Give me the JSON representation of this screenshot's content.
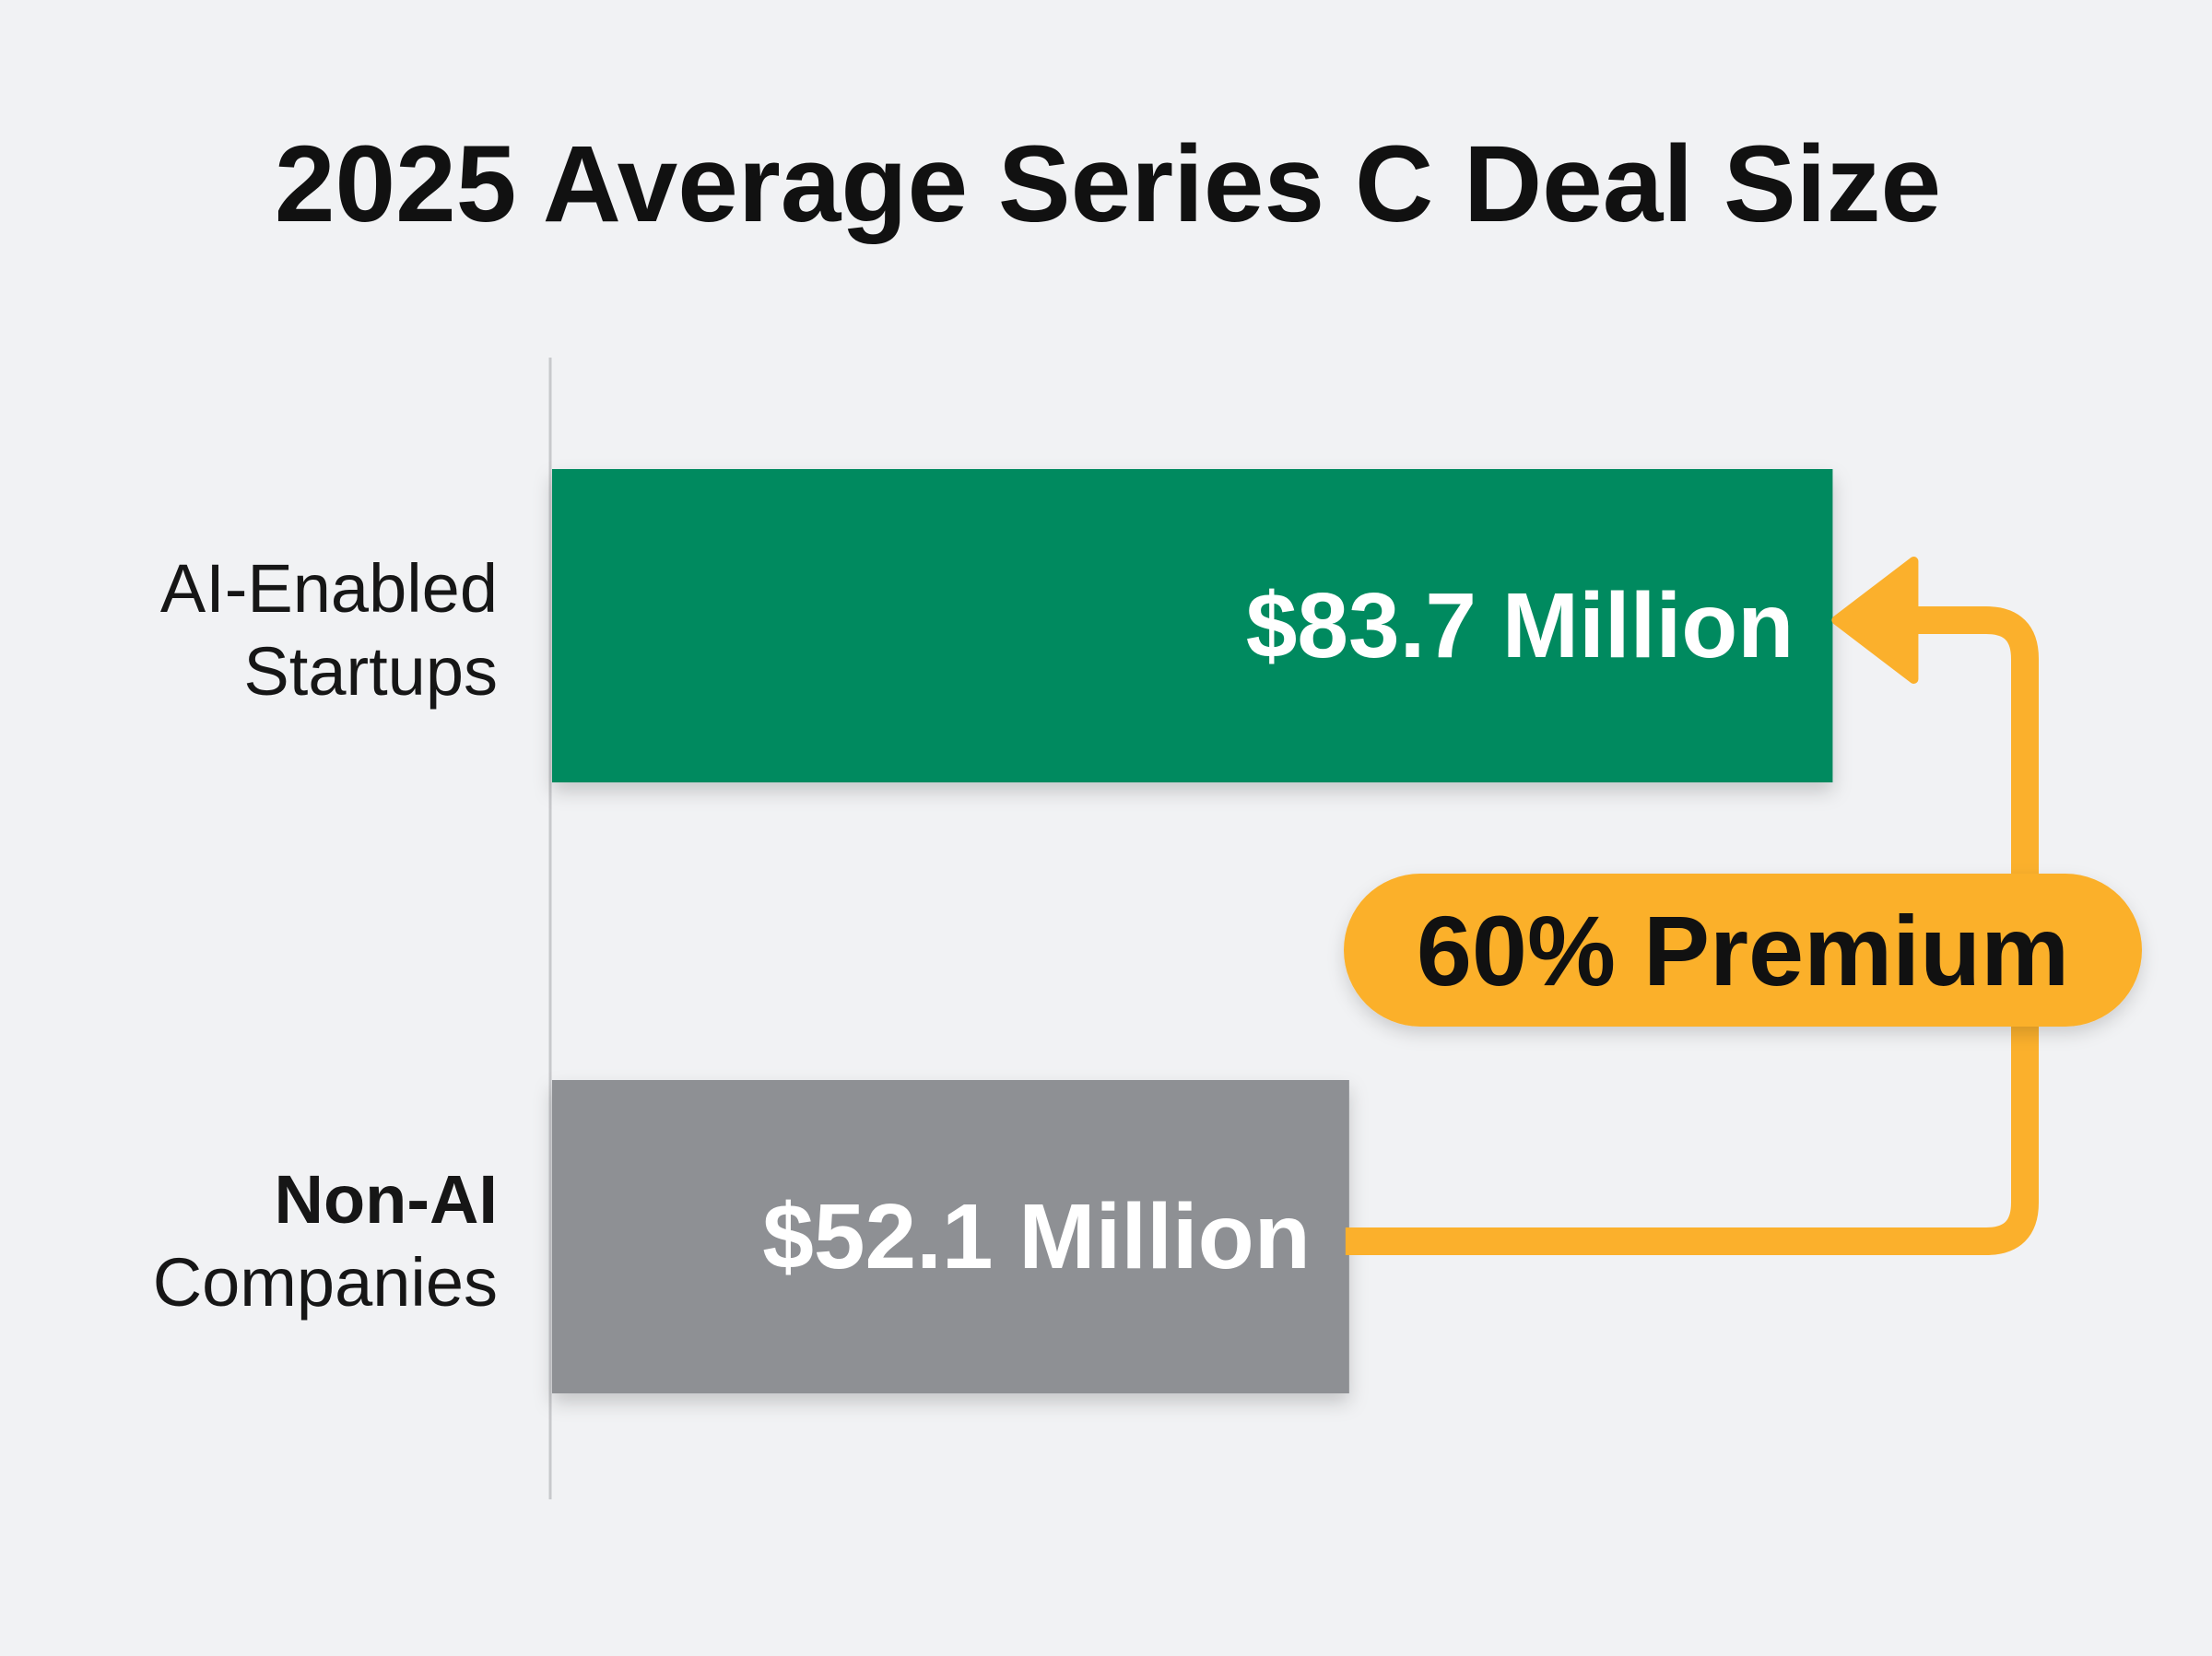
{
  "chart_data": {
    "type": "bar",
    "orientation": "horizontal",
    "title": "2025 Average Series C Deal Size",
    "categories": [
      {
        "line1": "AI-Enabled",
        "line2": "Startups"
      },
      {
        "line1": "Non-AI",
        "line2": "Companies"
      }
    ],
    "values": [
      83.7,
      52.1
    ],
    "units": "Million USD",
    "data_labels": [
      "$83.7 Million",
      "$52.1 Million"
    ],
    "bar_colors": [
      "#038a5e",
      "#8e9094"
    ],
    "xlim": [
      0,
      90
    ],
    "grid": false,
    "legend": "none",
    "annotation": {
      "text": "60% Premium",
      "color": "#fbb02c",
      "from_category_index": 1,
      "to_category_index": 0
    }
  }
}
